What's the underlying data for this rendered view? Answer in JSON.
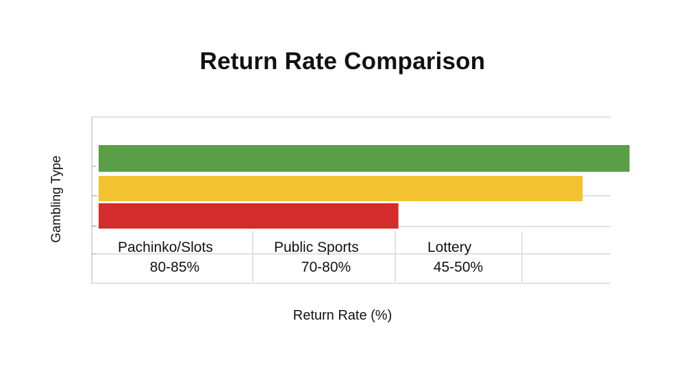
{
  "chart_data": {
    "type": "bar",
    "orientation": "horizontal",
    "title": "Return Rate Comparison",
    "xlabel": "Return Rate (%)",
    "ylabel": "Gambling Type",
    "categories": [
      "Pachinko/Slots",
      "Public Sports",
      "Lottery"
    ],
    "ranges": [
      "80-85%",
      "70-80%",
      "45-50%"
    ],
    "values": [
      85,
      77.5,
      48
    ],
    "colors": [
      "#5a9e47",
      "#f2c230",
      "#d42b2b"
    ],
    "xlim": [
      0,
      85
    ],
    "grid": true,
    "legend": "none"
  }
}
